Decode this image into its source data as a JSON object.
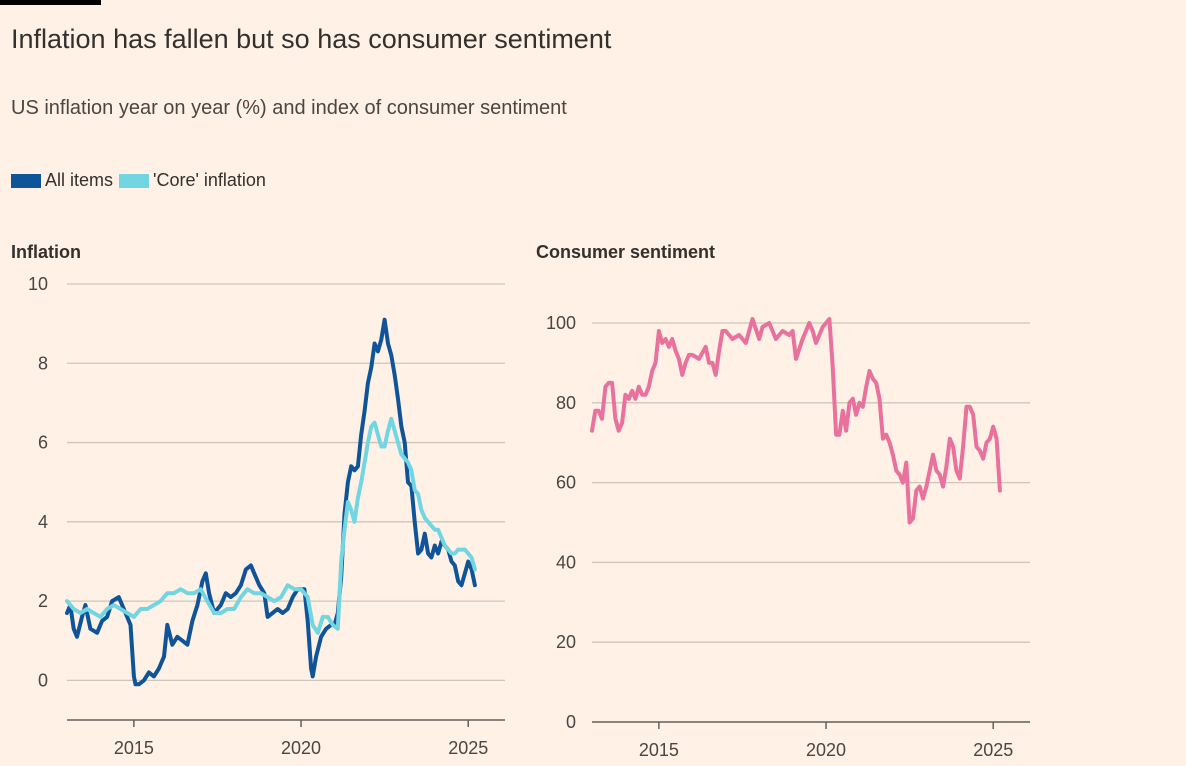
{
  "header": {
    "title": "Inflation has fallen but so has consumer sentiment",
    "subtitle": "US inflation year on year (%) and index of consumer sentiment"
  },
  "legend": [
    {
      "label": "All items",
      "color": "#0F5499"
    },
    {
      "label": "'Core' inflation",
      "color": "#72D6E2"
    }
  ],
  "chart_data": [
    {
      "type": "line",
      "title": "Inflation",
      "ylim": [
        -1,
        10
      ],
      "xlim": [
        2013.0,
        2026.1
      ],
      "yticks": [
        0,
        2,
        4,
        6,
        8,
        10
      ],
      "xticks": [
        2015,
        2020,
        2025
      ],
      "grid": true,
      "series": [
        {
          "name": "All items",
          "color": "#0F5499",
          "x": [
            2013.0,
            2013.1,
            2013.2,
            2013.3,
            2013.45,
            2013.55,
            2013.7,
            2013.9,
            2014.05,
            2014.2,
            2014.35,
            2014.55,
            2014.75,
            2014.9,
            2015.0,
            2015.05,
            2015.15,
            2015.3,
            2015.45,
            2015.6,
            2015.75,
            2015.9,
            2016.0,
            2016.15,
            2016.3,
            2016.45,
            2016.6,
            2016.75,
            2016.9,
            2017.05,
            2017.15,
            2017.25,
            2017.4,
            2017.6,
            2017.75,
            2017.9,
            2018.05,
            2018.2,
            2018.35,
            2018.5,
            2018.6,
            2018.75,
            2018.9,
            2019.0,
            2019.15,
            2019.3,
            2019.45,
            2019.6,
            2019.75,
            2019.9,
            2020.1,
            2020.2,
            2020.3,
            2020.35,
            2020.45,
            2020.6,
            2020.75,
            2020.9,
            2021.0,
            2021.1,
            2021.2,
            2021.3,
            2021.4,
            2021.5,
            2021.6,
            2021.7,
            2021.8,
            2021.9,
            2022.0,
            2022.1,
            2022.2,
            2022.3,
            2022.4,
            2022.5,
            2022.6,
            2022.7,
            2022.8,
            2022.9,
            2023.0,
            2023.1,
            2023.2,
            2023.3,
            2023.4,
            2023.5,
            2023.6,
            2023.7,
            2023.8,
            2023.9,
            2024.0,
            2024.1,
            2024.2,
            2024.3,
            2024.4,
            2024.5,
            2024.6,
            2024.7,
            2024.8,
            2024.9,
            2025.0,
            2025.1,
            2025.2
          ],
          "y": [
            1.7,
            1.9,
            1.3,
            1.1,
            1.6,
            1.9,
            1.3,
            1.2,
            1.5,
            1.6,
            2.0,
            2.1,
            1.7,
            1.4,
            0.1,
            -0.1,
            -0.1,
            0.0,
            0.2,
            0.1,
            0.3,
            0.6,
            1.4,
            0.9,
            1.1,
            1.0,
            0.9,
            1.5,
            1.9,
            2.5,
            2.7,
            2.2,
            1.7,
            1.9,
            2.2,
            2.1,
            2.2,
            2.4,
            2.8,
            2.9,
            2.7,
            2.4,
            2.2,
            1.6,
            1.7,
            1.8,
            1.7,
            1.8,
            2.1,
            2.3,
            2.3,
            1.5,
            0.3,
            0.1,
            0.6,
            1.1,
            1.3,
            1.4,
            1.4,
            1.7,
            2.6,
            4.2,
            5.0,
            5.4,
            5.3,
            5.4,
            6.2,
            6.8,
            7.5,
            7.9,
            8.5,
            8.3,
            8.6,
            9.1,
            8.5,
            8.2,
            7.7,
            7.1,
            6.4,
            6.0,
            5.0,
            4.9,
            4.0,
            3.2,
            3.3,
            3.7,
            3.2,
            3.1,
            3.4,
            3.2,
            3.5,
            3.4,
            3.3,
            3.0,
            2.9,
            2.5,
            2.4,
            2.7,
            3.0,
            2.8,
            2.4
          ]
        },
        {
          "name": "'Core' inflation",
          "color": "#72D6E2",
          "x": [
            2013.0,
            2013.2,
            2013.4,
            2013.6,
            2013.8,
            2014.0,
            2014.2,
            2014.4,
            2014.6,
            2014.8,
            2015.0,
            2015.2,
            2015.4,
            2015.6,
            2015.8,
            2016.0,
            2016.2,
            2016.4,
            2016.6,
            2016.8,
            2017.0,
            2017.2,
            2017.4,
            2017.6,
            2017.8,
            2018.0,
            2018.2,
            2018.4,
            2018.6,
            2018.8,
            2019.0,
            2019.2,
            2019.4,
            2019.6,
            2019.8,
            2020.0,
            2020.2,
            2020.35,
            2020.5,
            2020.65,
            2020.8,
            2020.95,
            2021.1,
            2021.2,
            2021.3,
            2021.4,
            2021.5,
            2021.6,
            2021.7,
            2021.8,
            2021.9,
            2022.0,
            2022.1,
            2022.2,
            2022.3,
            2022.4,
            2022.5,
            2022.6,
            2022.7,
            2022.8,
            2022.9,
            2023.0,
            2023.1,
            2023.2,
            2023.3,
            2023.4,
            2023.5,
            2023.6,
            2023.7,
            2023.8,
            2023.9,
            2024.0,
            2024.1,
            2024.2,
            2024.3,
            2024.4,
            2024.5,
            2024.6,
            2024.7,
            2024.8,
            2024.9,
            2025.0,
            2025.1,
            2025.2
          ],
          "y": [
            2.0,
            1.8,
            1.7,
            1.8,
            1.7,
            1.6,
            1.8,
            1.9,
            1.8,
            1.7,
            1.6,
            1.8,
            1.8,
            1.9,
            2.0,
            2.2,
            2.2,
            2.3,
            2.2,
            2.2,
            2.3,
            2.0,
            1.7,
            1.7,
            1.8,
            1.8,
            2.1,
            2.3,
            2.2,
            2.2,
            2.1,
            2.0,
            2.1,
            2.4,
            2.3,
            2.3,
            2.1,
            1.4,
            1.2,
            1.6,
            1.6,
            1.4,
            1.3,
            3.0,
            3.8,
            4.5,
            4.3,
            4.0,
            4.6,
            5.0,
            5.5,
            6.0,
            6.4,
            6.5,
            6.2,
            5.9,
            5.9,
            6.3,
            6.6,
            6.3,
            6.0,
            5.7,
            5.6,
            5.5,
            5.3,
            4.8,
            4.7,
            4.3,
            4.1,
            4.0,
            3.9,
            3.8,
            3.8,
            3.6,
            3.4,
            3.3,
            3.2,
            3.2,
            3.3,
            3.3,
            3.3,
            3.2,
            3.1,
            2.8
          ]
        }
      ]
    },
    {
      "type": "line",
      "title": "Consumer sentiment",
      "ylim": [
        0,
        100
      ],
      "xlim": [
        2013.0,
        2026.1
      ],
      "yticks": [
        0,
        20,
        40,
        60,
        80,
        100
      ],
      "xticks": [
        2015,
        2020,
        2025
      ],
      "grid": true,
      "series": [
        {
          "name": "",
          "color": "#E9719D",
          "x": [
            2013.0,
            2013.1,
            2013.2,
            2013.3,
            2013.4,
            2013.5,
            2013.6,
            2013.7,
            2013.8,
            2013.9,
            2014.0,
            2014.1,
            2014.2,
            2014.3,
            2014.4,
            2014.5,
            2014.6,
            2014.7,
            2014.8,
            2014.9,
            2015.0,
            2015.1,
            2015.2,
            2015.3,
            2015.4,
            2015.5,
            2015.6,
            2015.7,
            2015.8,
            2015.9,
            2016.0,
            2016.2,
            2016.4,
            2016.5,
            2016.6,
            2016.7,
            2016.8,
            2016.9,
            2017.0,
            2017.2,
            2017.4,
            2017.6,
            2017.8,
            2018.0,
            2018.1,
            2018.3,
            2018.5,
            2018.7,
            2018.9,
            2019.0,
            2019.1,
            2019.3,
            2019.5,
            2019.6,
            2019.7,
            2019.9,
            2020.0,
            2020.1,
            2020.2,
            2020.3,
            2020.4,
            2020.5,
            2020.6,
            2020.7,
            2020.8,
            2020.9,
            2021.0,
            2021.1,
            2021.2,
            2021.3,
            2021.4,
            2021.5,
            2021.6,
            2021.7,
            2021.8,
            2021.9,
            2022.0,
            2022.1,
            2022.2,
            2022.3,
            2022.4,
            2022.5,
            2022.6,
            2022.7,
            2022.8,
            2022.9,
            2023.0,
            2023.1,
            2023.2,
            2023.3,
            2023.4,
            2023.5,
            2023.6,
            2023.7,
            2023.8,
            2023.9,
            2024.0,
            2024.1,
            2024.2,
            2024.3,
            2024.4,
            2024.5,
            2024.6,
            2024.7,
            2024.8,
            2024.9,
            2025.0,
            2025.1,
            2025.2
          ],
          "y": [
            73,
            78,
            78,
            76,
            84,
            85,
            85,
            76,
            73,
            75,
            82,
            81,
            83,
            81,
            84,
            82,
            82,
            84,
            88,
            90,
            98,
            95,
            96,
            94,
            96,
            93,
            91,
            87,
            90,
            92,
            92,
            91,
            94,
            90,
            90,
            87,
            93,
            98,
            98,
            96,
            97,
            95,
            101,
            96,
            99,
            100,
            96,
            98,
            97,
            98,
            91,
            96,
            100,
            98,
            95,
            99,
            100,
            101,
            89,
            72,
            72,
            78,
            73,
            80,
            81,
            77,
            80,
            79,
            84,
            88,
            86,
            85,
            81,
            71,
            72,
            70,
            67,
            63,
            62,
            60,
            65,
            50,
            51,
            58,
            59,
            56,
            59,
            63,
            67,
            63,
            62,
            59,
            64,
            71,
            69,
            63,
            61,
            69,
            79,
            79,
            77,
            69,
            68,
            66,
            70,
            71,
            74,
            71,
            58
          ]
        }
      ]
    }
  ]
}
